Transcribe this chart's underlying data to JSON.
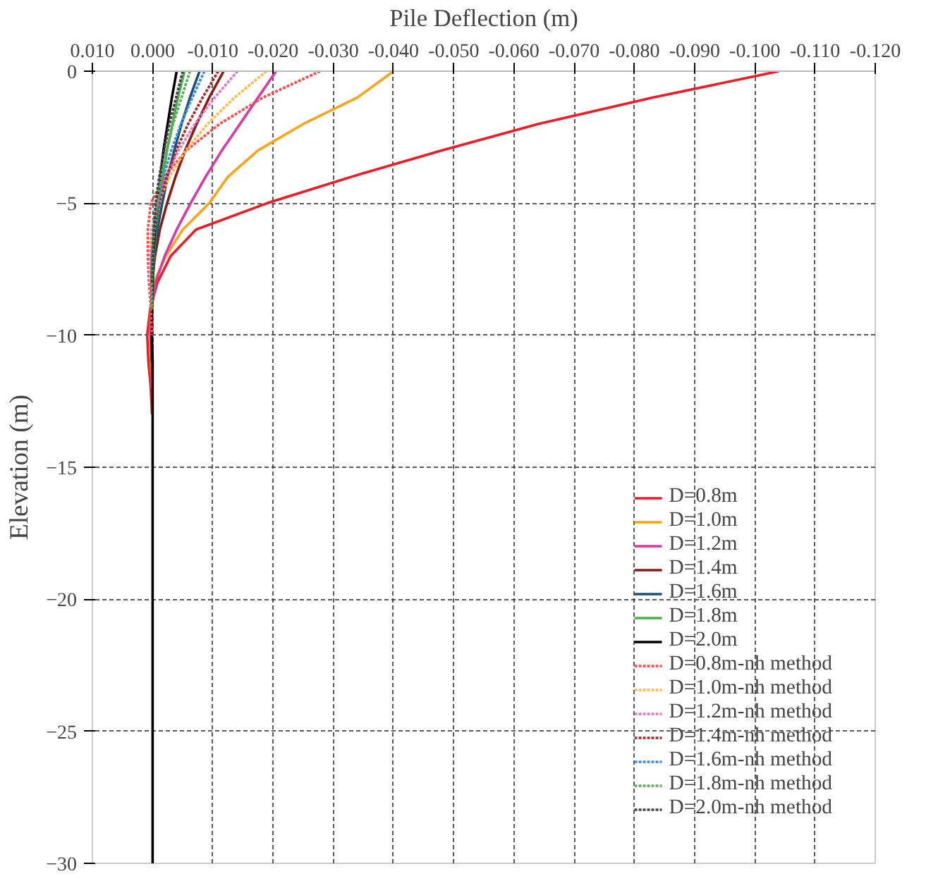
{
  "chart_data": {
    "type": "line",
    "xlabel": "Pile Deflection (m)",
    "ylabel": "Elevation (m)",
    "xlim": [
      0.01,
      -0.12
    ],
    "xticks": [
      {
        "value": 0.01,
        "label": "0.010"
      },
      {
        "value": 0,
        "label": "0.000"
      },
      {
        "value": -0.01,
        "label": "-0.010"
      },
      {
        "value": -0.02,
        "label": "-0.020"
      },
      {
        "value": -0.03,
        "label": "-0.030"
      },
      {
        "value": -0.04,
        "label": "-0.040"
      },
      {
        "value": -0.05,
        "label": "-0.050"
      },
      {
        "value": -0.06,
        "label": "-0.060"
      },
      {
        "value": -0.07,
        "label": "-0.070"
      },
      {
        "value": -0.08,
        "label": "-0.080"
      },
      {
        "value": -0.09,
        "label": "-0.090"
      },
      {
        "value": -0.1,
        "label": "-0.100"
      },
      {
        "value": -0.11,
        "label": "-0.110"
      },
      {
        "value": -0.12,
        "label": "-0.120"
      }
    ],
    "ylim": [
      -30,
      0
    ],
    "yticks": [
      0,
      -5,
      -10,
      -15,
      -20,
      -25,
      -30
    ],
    "grid": true,
    "legend": "bottom right",
    "series": [
      {
        "name": "D=0.8m",
        "color": "#ee1c25",
        "line_style": "solid",
        "x": [
          -0.104,
          -0.083,
          -0.064,
          -0.048,
          -0.033,
          -0.019,
          -0.0072,
          -0.003,
          -0.0008,
          0.0004,
          0.0009,
          0.0007,
          0.0003,
          0.0001
        ],
        "values": [
          0,
          -1,
          -2,
          -3,
          -4,
          -5,
          -6,
          -7,
          -8,
          -9,
          -10,
          -11,
          -12,
          -13
        ]
      },
      {
        "name": "D=1.0m",
        "color": "#ffa31a",
        "line_style": "solid",
        "x": [
          -0.04,
          -0.034,
          -0.025,
          -0.0175,
          -0.0125,
          -0.0094,
          -0.005,
          -0.0022,
          -0.0002,
          0.0003,
          0.0004,
          0.0003,
          0.0001
        ],
        "values": [
          0,
          -1,
          -2,
          -3,
          -4,
          -5,
          -6,
          -7,
          -8,
          -9,
          -10,
          -11,
          -12
        ]
      },
      {
        "name": "D=1.2m",
        "color": "#d63aa5",
        "line_style": "solid",
        "x": [
          -0.0205,
          -0.0175,
          -0.0145,
          -0.0115,
          -0.0088,
          -0.0063,
          -0.004,
          -0.002,
          -0.0005,
          0.0002,
          0.0003,
          0.0002,
          0.0001
        ],
        "values": [
          0,
          -1,
          -2,
          -3,
          -4,
          -5,
          -6,
          -7,
          -8,
          -9,
          -10,
          -11,
          -12
        ]
      },
      {
        "name": "D=1.4m",
        "color": "#8b1a1a",
        "line_style": "solid",
        "x": [
          -0.0118,
          -0.0094,
          -0.0073,
          -0.0054,
          -0.0038,
          -0.0024,
          -0.0012,
          -0.0004,
          0.0001,
          0.0002,
          0.0002,
          0.0001
        ],
        "values": [
          0,
          -1,
          -2,
          -3,
          -4,
          -5,
          -6,
          -7,
          -8,
          -9,
          -10,
          -11
        ]
      },
      {
        "name": "D=1.6m",
        "color": "#1f4e79",
        "line_style": "solid",
        "x": [
          -0.0078,
          -0.0062,
          -0.0048,
          -0.0036,
          -0.0025,
          -0.0016,
          -0.0008,
          -0.0002,
          0.0001,
          0.0002,
          0.0002,
          0.0001
        ],
        "values": [
          0,
          -1,
          -2,
          -3,
          -4,
          -5,
          -6,
          -7,
          -8,
          -9,
          -10,
          -11
        ]
      },
      {
        "name": "D=1.8m",
        "color": "#4caf50",
        "line_style": "solid",
        "x": [
          -0.0053,
          -0.0042,
          -0.0033,
          -0.0024,
          -0.0017,
          -0.0011,
          -0.0005,
          -0.0002,
          0.0001,
          0.0001
        ],
        "values": [
          0,
          -1,
          -2,
          -3,
          -4,
          -5,
          -6,
          -7,
          -9,
          -10
        ]
      },
      {
        "name": "D=2.0m",
        "color": "#000000",
        "line_style": "solid",
        "x": [
          -0.004,
          -0.0032,
          -0.0025,
          -0.0018,
          -0.0013,
          -0.0008,
          -0.0004,
          -0.0001,
          0,
          0.0001,
          0.0001,
          0,
          0,
          0,
          0,
          0
        ],
        "values": [
          0,
          -1,
          -2,
          -3,
          -4,
          -5,
          -6,
          -7,
          -8,
          -9,
          -10,
          -11,
          -12,
          -13,
          -15,
          -30
        ]
      },
      {
        "name": "D=0.8m-nh method",
        "color": "#ff4b4b",
        "line_style": "dotted",
        "x": [
          -0.0278,
          -0.0183,
          -0.0111,
          -0.0056,
          -0.0019,
          0.0003,
          0.0008,
          0.0008,
          0.0006,
          0.0003,
          0.0001
        ],
        "values": [
          0,
          -1,
          -2,
          -3,
          -4,
          -5,
          -6,
          -7,
          -8,
          -9,
          -10
        ]
      },
      {
        "name": "D=1.0m-nh method",
        "color": "#ffb84d",
        "line_style": "dotted",
        "x": [
          -0.0189,
          -0.0136,
          -0.0091,
          -0.0055,
          -0.0028,
          -0.0009,
          0.0002,
          0.0004,
          0.0004
        ],
        "values": [
          0,
          -1,
          -2,
          -3,
          -4,
          -5,
          -6,
          -7,
          -8
        ]
      },
      {
        "name": "D=1.2m-nh method",
        "color": "#e377c2",
        "line_style": "dotted",
        "x": [
          -0.0141,
          -0.0103,
          -0.007,
          -0.0043,
          -0.0023,
          -0.0008,
          0.0001,
          0.0003,
          0.0003,
          0.0002
        ],
        "values": [
          0,
          -1,
          -2,
          -3,
          -4,
          -5,
          -6,
          -7,
          -8,
          -9
        ]
      },
      {
        "name": "D=1.4m-nh method",
        "color": "#a52a2a",
        "line_style": "dotted",
        "x": [
          -0.0109,
          -0.0083,
          -0.0059,
          -0.0039,
          -0.0023,
          -0.0011,
          -0.0003,
          0.0001,
          0.0002,
          0.0001
        ],
        "values": [
          0,
          -1,
          -2,
          -3,
          -4,
          -5,
          -6,
          -7,
          -8,
          -9
        ]
      },
      {
        "name": "D=1.6m-nh method",
        "color": "#3a8fd6",
        "line_style": "dotted",
        "x": [
          -0.0086,
          -0.0066,
          -0.0047,
          -0.0031,
          -0.0018,
          -0.0009,
          -0.0003,
          0.0001,
          0.0002
        ],
        "values": [
          0,
          -1,
          -2,
          -3,
          -4,
          -5,
          -6,
          -7,
          -8
        ]
      },
      {
        "name": "D=1.8m-nh method",
        "color": "#5aae5a",
        "line_style": "dotted",
        "x": [
          -0.0062,
          -0.0048,
          -0.0034,
          -0.0023,
          -0.0014,
          -0.0007,
          -0.0002,
          0.0001,
          0.0001
        ],
        "values": [
          0,
          -1,
          -2,
          -3,
          -4,
          -5,
          -6,
          -8,
          -9
        ]
      },
      {
        "name": "D=2.0m-nh method",
        "color": "#444444",
        "line_style": "dotted",
        "x": [
          -0.005,
          -0.0039,
          -0.0028,
          -0.0019,
          -0.0011,
          -0.0005,
          -0.0002,
          0.0001
        ],
        "values": [
          0,
          -1,
          -2,
          -3,
          -4,
          -5,
          -6,
          -8
        ]
      }
    ]
  }
}
